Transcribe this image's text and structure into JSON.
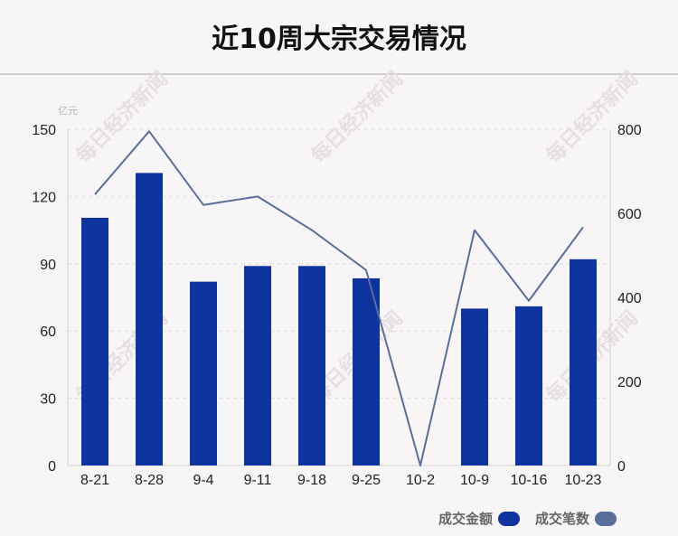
{
  "title": "近10周大宗交易情况",
  "watermark": "每日经济新闻",
  "chart_data": {
    "type": "bar",
    "categories": [
      "8-21",
      "8-28",
      "9-4",
      "9-11",
      "9-18",
      "9-25",
      "10-2",
      "10-9",
      "10-16",
      "10-23"
    ],
    "series": [
      {
        "name": "成交金额",
        "type": "bar",
        "axis": "left",
        "color": "#0e34a0",
        "values": [
          110.5,
          130.5,
          82,
          89,
          89,
          83.5,
          0,
          70,
          71,
          92
        ]
      },
      {
        "name": "成交笔数",
        "type": "line",
        "axis": "right",
        "color": "#5a6e9c",
        "values": [
          645,
          795,
          620,
          640,
          560,
          465,
          0,
          560,
          392,
          567
        ]
      }
    ],
    "y_left": {
      "unit": "亿元",
      "ylim": [
        0,
        150
      ],
      "ticks": [
        0,
        30,
        60,
        90,
        120,
        150
      ]
    },
    "y_right": {
      "ylim": [
        0,
        800
      ],
      "ticks": [
        0,
        200,
        400,
        600,
        800
      ]
    },
    "grid": "dashed-horizontal",
    "legend_placement": "bottom-right"
  }
}
